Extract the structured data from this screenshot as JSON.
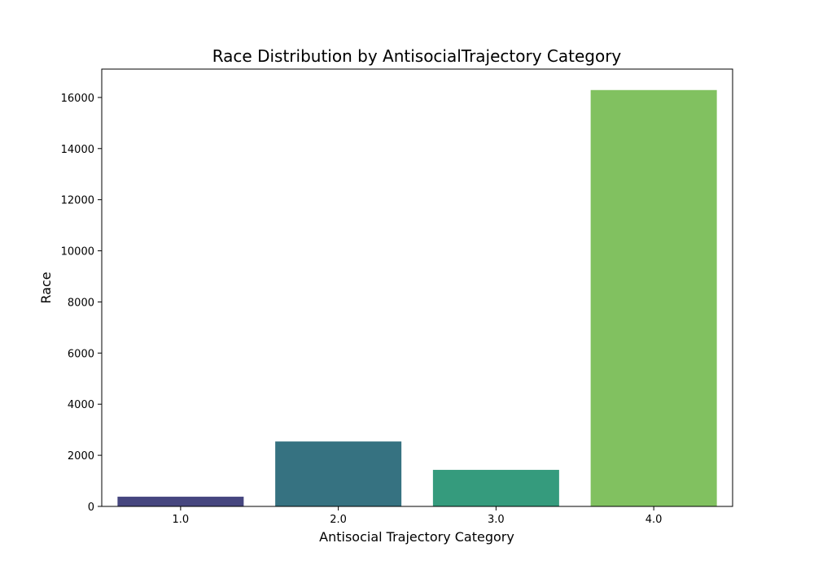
{
  "chart_data": {
    "type": "bar",
    "title": "Race Distribution by AntisocialTrajectory Category",
    "xlabel": "Antisocial Trajectory Category",
    "ylabel": "Race",
    "categories": [
      "1.0",
      "2.0",
      "3.0",
      "4.0"
    ],
    "values": [
      380,
      2540,
      1430,
      16290
    ],
    "colors": [
      "#46467f",
      "#367281",
      "#359b7d",
      "#81c160"
    ],
    "ylim": [
      0,
      17110
    ],
    "yticks": [
      0,
      2000,
      4000,
      6000,
      8000,
      10000,
      12000,
      14000,
      16000
    ],
    "ytick_labels": [
      "0",
      "2000",
      "4000",
      "6000",
      "8000",
      "10000",
      "12000",
      "14000",
      "16000"
    ],
    "grid": false,
    "legend": "none"
  }
}
